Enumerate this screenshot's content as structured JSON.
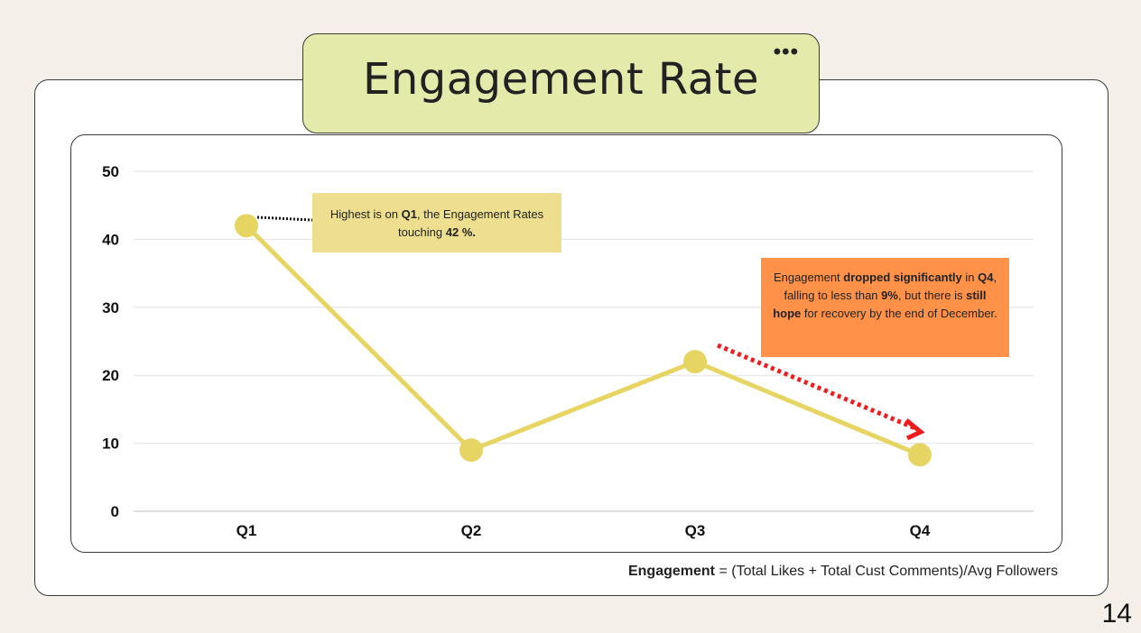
{
  "title": "Engagement Rate",
  "menu_icon": "more-horizontal-icon",
  "colors": {
    "line": "#e6d463",
    "point": "#e6d463",
    "title_bg": "#e4eaa9",
    "ann_q1_bg": "#eddf8f",
    "ann_q4_bg": "#ff9248",
    "arrow": "#ee1c1c"
  },
  "chart_data": {
    "type": "line",
    "categories": [
      "Q1",
      "Q2",
      "Q3",
      "Q4"
    ],
    "series": [
      {
        "values": [
          42,
          9,
          22,
          8.3
        ]
      }
    ],
    "yticks": [
      "0",
      "10",
      "20",
      "30",
      "40",
      "50"
    ],
    "ylim": [
      0,
      50
    ],
    "grid": true,
    "legend": "none"
  },
  "annotations": {
    "q1": {
      "t1": "Highest is on ",
      "b1": "Q1",
      "t2": ", the Engagement Rates touching ",
      "b2": "42 %."
    },
    "q4": {
      "t1": "Engagement ",
      "b1": "dropped significantly",
      "t2": " in ",
      "b2": "Q4",
      "t3": ", falling to less than ",
      "b3": "9%",
      "t4": ", but there is ",
      "b4": "still hope",
      "t5": " for recovery by the end of December."
    }
  },
  "footnote": {
    "bold": "Engagement",
    "rest": " = (Total Likes + Total Cust Comments)/Avg Followers"
  },
  "page_number": "14"
}
